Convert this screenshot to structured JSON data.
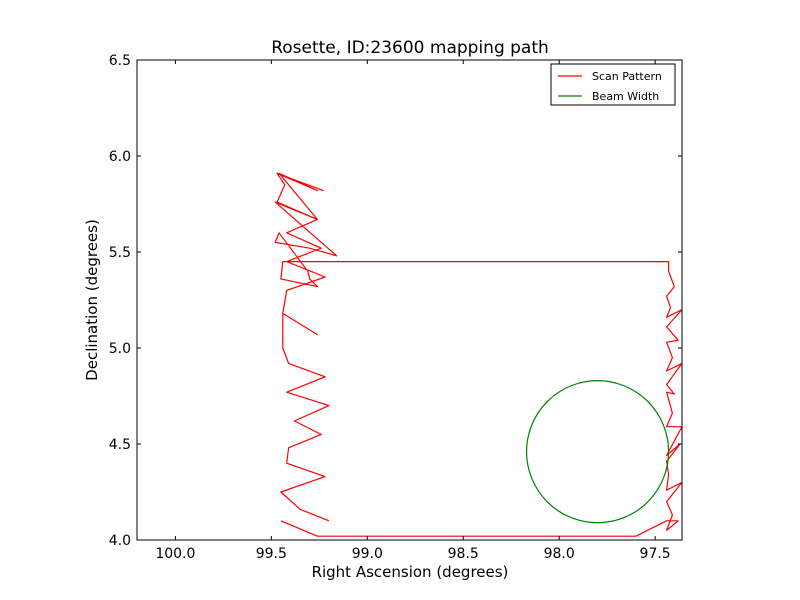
{
  "chart_data": {
    "type": "line",
    "title": "Rosette, ID:23600 mapping path",
    "xlabel": "Right Ascension (degrees)",
    "ylabel": "Declination (degrees)",
    "xlim": [
      100.2,
      97.36
    ],
    "ylim": [
      4.0,
      6.5
    ],
    "x_reversed": true,
    "xticks": [
      100.0,
      99.5,
      99.0,
      98.5,
      98.0,
      97.5
    ],
    "xtick_labels": [
      "100.0",
      "99.5",
      "99.0",
      "98.5",
      "98.0",
      "97.5"
    ],
    "yticks": [
      4.0,
      4.5,
      5.0,
      5.5,
      6.0,
      6.5
    ],
    "ytick_labels": [
      "4.0",
      "4.5",
      "5.0",
      "5.5",
      "6.0",
      "6.5"
    ],
    "grid": false,
    "legend_position": "top-right",
    "series": [
      {
        "name": "Scan Pattern",
        "color": "#ff0000",
        "x": [
          99.45,
          99.26,
          99.25,
          99.0,
          98.7,
          98.5,
          98.2,
          98.0,
          97.85,
          97.64,
          97.6,
          97.44,
          97.38,
          97.44,
          97.41,
          97.44,
          97.36,
          97.44,
          97.43,
          97.44,
          97.37,
          97.44,
          97.36,
          97.44,
          97.41,
          97.44,
          97.4,
          97.44,
          97.36,
          97.44,
          97.41,
          97.44,
          97.38,
          97.44,
          97.36,
          97.44,
          97.42,
          97.44,
          97.4,
          97.43,
          97.43,
          97.62,
          99.23,
          99.44,
          99.45,
          99.26,
          99.3,
          99.31,
          99.46,
          99.48,
          99.3,
          99.16,
          99.48,
          99.26,
          99.46,
          99.26,
          99.47,
          99.23,
          99.47,
          99.43,
          99.47,
          99.26,
          99.42,
          99.24,
          99.42,
          99.22,
          99.42,
          99.44,
          99.26,
          99.44,
          99.44,
          99.41,
          99.22,
          99.42,
          99.2,
          99.38,
          99.24,
          99.41,
          99.42,
          99.22,
          99.45,
          99.35,
          99.2
        ],
        "y": [
          4.1,
          4.02,
          4.02,
          4.02,
          4.02,
          4.02,
          4.02,
          4.02,
          4.02,
          4.02,
          4.02,
          4.1,
          4.1,
          4.05,
          4.13,
          4.2,
          4.3,
          4.26,
          4.34,
          4.41,
          4.5,
          4.44,
          4.59,
          4.59,
          4.66,
          4.77,
          4.76,
          4.81,
          4.92,
          4.88,
          4.95,
          5.03,
          5.04,
          5.11,
          5.2,
          5.16,
          5.21,
          5.27,
          5.32,
          5.4,
          5.45,
          5.45,
          5.45,
          5.45,
          5.36,
          5.32,
          5.36,
          5.4,
          5.6,
          5.55,
          5.52,
          5.48,
          5.76,
          5.67,
          5.91,
          5.82,
          5.91,
          5.82,
          5.91,
          5.85,
          5.76,
          5.67,
          5.6,
          5.52,
          5.45,
          5.37,
          5.3,
          5.18,
          5.07,
          5.18,
          5.0,
          4.92,
          4.85,
          4.77,
          4.7,
          4.62,
          4.55,
          4.48,
          4.4,
          4.33,
          4.25,
          4.16,
          4.1
        ]
      },
      {
        "name": "Beam Width",
        "color": "#008000",
        "circle": {
          "center_x": 97.8,
          "center_y": 4.46,
          "radius_deg": 0.37
        }
      }
    ],
    "axis_color": "#000000"
  }
}
